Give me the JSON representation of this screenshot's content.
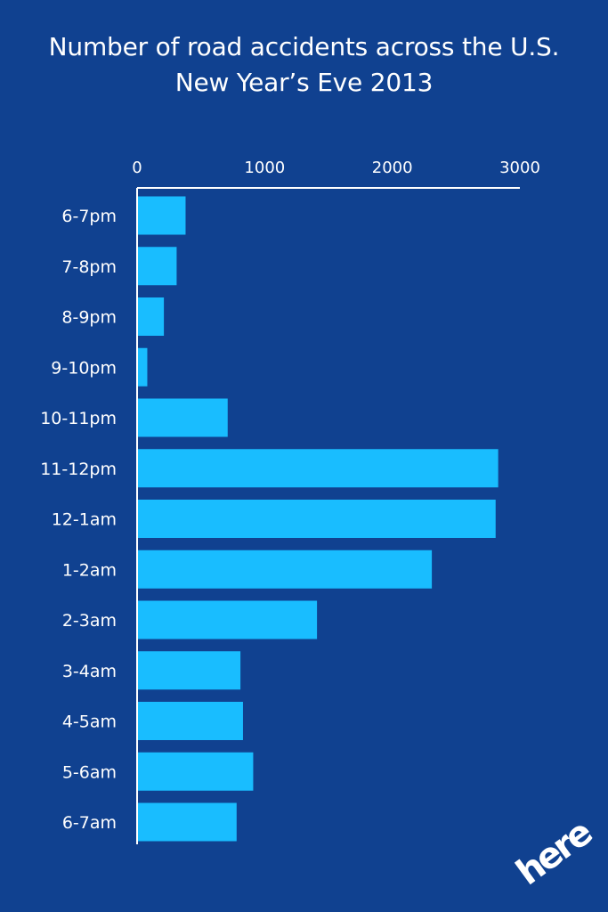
{
  "title_line1": "Number of road accidents across the U.S.",
  "title_line2": "New Year’s Eve 2013",
  "logo_text": "here",
  "colors": {
    "background": "#104190",
    "bar": "#19BDFF",
    "axis": "#ffffff",
    "text": "#ffffff"
  },
  "chart_data": {
    "type": "bar",
    "orientation": "horizontal",
    "title": "Number of road accidents across the U.S. New Year’s Eve 2013",
    "xlabel": "",
    "ylabel": "",
    "xlim": [
      0,
      3000
    ],
    "x_ticks": [
      "0",
      "1000",
      "2000",
      "3000"
    ],
    "x_tick_values": [
      0,
      1000,
      2000,
      3000
    ],
    "x_axis_position": "top",
    "grid": false,
    "legend": "none",
    "categories": [
      "6-7pm",
      "7-8pm",
      "8-9pm",
      "9-10pm",
      "10-11pm",
      "11-12pm",
      "12-1am",
      "1-2am",
      "2-3am",
      "3-4am",
      "4-5am",
      "5-6am",
      "6-7am"
    ],
    "values": [
      380,
      310,
      210,
      80,
      710,
      2830,
      2810,
      2310,
      1410,
      810,
      830,
      910,
      780
    ]
  }
}
